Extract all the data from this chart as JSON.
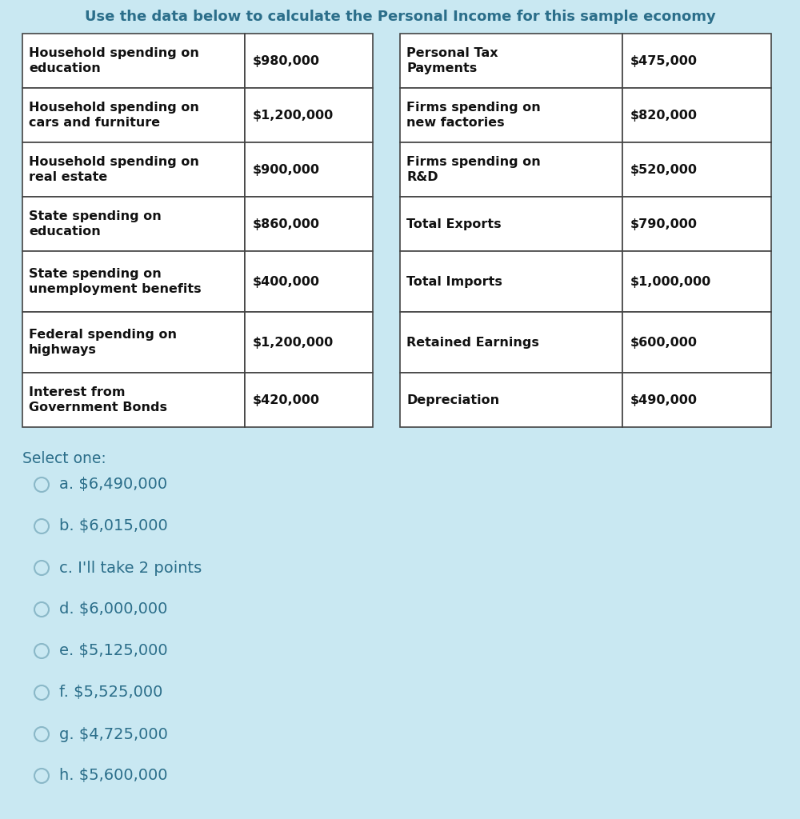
{
  "title": "Use the data below to calculate the Personal Income for this sample economy",
  "title_color": "#2b6e8a",
  "background_color": "#c9e8f2",
  "table_bg": "#ffffff",
  "table_border_color": "#444444",
  "title_fontsize": 13.0,
  "left_table": [
    [
      "Household spending on\neducation",
      "$980,000"
    ],
    [
      "Household spending on\ncars and furniture",
      "$1,200,000"
    ],
    [
      "Household spending on\nreal estate",
      "$900,000"
    ],
    [
      "State spending on\neducation",
      "$860,000"
    ],
    [
      "State spending on\nunemployment benefits",
      "$400,000"
    ],
    [
      "Federal spending on\nhighways",
      "$1,200,000"
    ],
    [
      "Interest from\nGovernment Bonds",
      "$420,000"
    ]
  ],
  "right_table": [
    [
      "Personal Tax\nPayments",
      "$475,000"
    ],
    [
      "Firms spending on\nnew factories",
      "$820,000"
    ],
    [
      "Firms spending on\nR&D",
      "$520,000"
    ],
    [
      "Total Exports",
      "$790,000"
    ],
    [
      "Total Imports",
      "$1,000,000"
    ],
    [
      "Retained Earnings",
      "$600,000"
    ],
    [
      "Depreciation",
      "$490,000"
    ]
  ],
  "select_one_text": "Select one:",
  "select_one_color": "#2b6e8a",
  "choices": [
    "a. $6,490,000",
    "b. $6,015,000",
    "c. I'll take 2 points",
    "d. $6,000,000",
    "e. $5,125,000",
    "f. $5,525,000",
    "g. $4,725,000",
    "h. $5,600,000"
  ],
  "choices_color": "#2b6e8a",
  "choice_fontsize": 14,
  "table_label_fontsize": 11.5,
  "table_value_fontsize": 11.5,
  "select_fontsize": 13.5
}
